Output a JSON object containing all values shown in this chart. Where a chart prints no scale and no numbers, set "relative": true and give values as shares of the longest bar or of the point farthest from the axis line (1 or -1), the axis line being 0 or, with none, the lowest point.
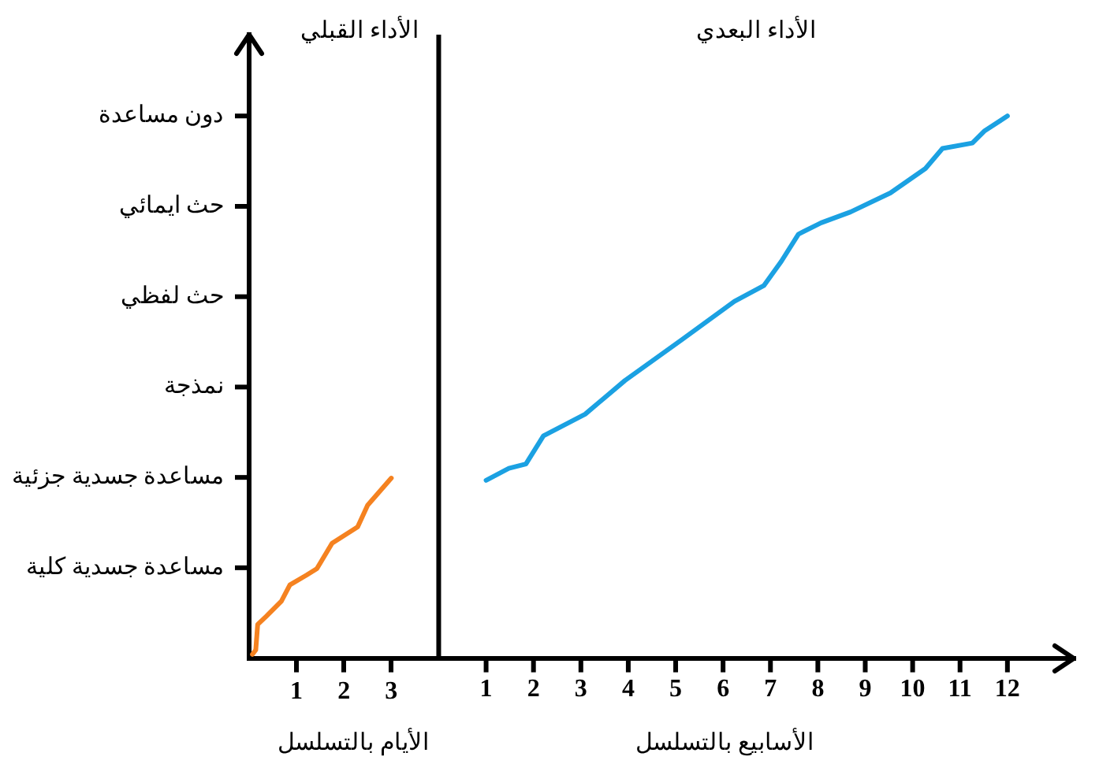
{
  "chart_data": {
    "type": "line",
    "relative": true,
    "xlabel": "الأسابيع بالتسلسل",
    "annotations": [
      "الأداء القبلي",
      "الأداء البعدي",
      "الأيام بالتسلسل",
      "مساعدة جسدية كلية",
      "مساعدة جسدية جزئية",
      "نمذجة",
      "حث لفظي",
      "حث ايمائي",
      "دون مساعدة"
    ],
    "series": [
      {
        "color": "#f58220",
        "x": [
          0.07,
          0.14,
          0.18,
          0.36,
          0.68,
          0.86,
          1.21,
          1.43,
          1.75,
          2.29,
          2.5,
          2.75,
          3.0
        ],
        "values": [
          0.007,
          0.015,
          0.062,
          0.077,
          0.105,
          0.135,
          0.153,
          0.165,
          0.212,
          0.242,
          0.282,
          0.307,
          0.332
        ]
      },
      {
        "color": "#1ba1e2",
        "axis": "x2",
        "x": [
          1,
          1.48,
          1.84,
          2.21,
          3.09,
          3.93,
          5.14,
          6.24,
          6.86,
          7.23,
          7.59,
          8.07,
          8.69,
          9.53,
          10.27,
          10.63,
          11.26,
          11.51,
          12
        ],
        "values": [
          0.328,
          0.35,
          0.358,
          0.41,
          0.45,
          0.512,
          0.588,
          0.658,
          0.687,
          0.732,
          0.782,
          0.803,
          0.823,
          0.858,
          0.903,
          0.94,
          0.95,
          0.972,
          1
        ]
      }
    ],
    "xlim": [
      0,
      17.4
    ],
    "xticks": [
      1,
      2,
      3
    ],
    "x2lim": [
      -4,
      13.4
    ],
    "x2ticks": [
      1,
      2,
      3,
      4,
      5,
      6,
      7,
      8,
      9,
      10,
      11,
      12
    ],
    "ref_lines": [
      {
        "axis": "x",
        "value": 4,
        "color": "#000000"
      }
    ],
    "grid": false,
    "legend": false,
    "marker": "none",
    "line_style": "solid"
  }
}
